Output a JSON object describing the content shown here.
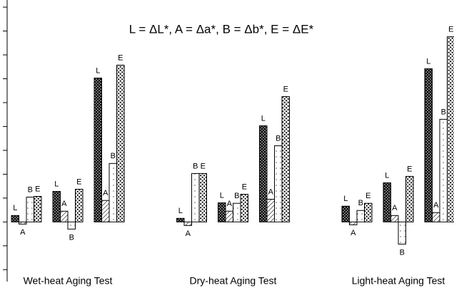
{
  "chart_data": {
    "type": "bar",
    "title": "L = ΔL*, A = Δa*, B = Δb*, E = ΔE*",
    "categories": [
      null,
      "Wet-heat Aging Test",
      null,
      null,
      "Dry-heat Aging Test",
      null,
      null,
      "Light-heat Aging Test",
      null
    ],
    "series": [
      {
        "name": "L",
        "color": "#000000",
        "values": [
          0.27,
          1.28,
          6.03,
          0.15,
          0.8,
          4.03,
          0.66,
          1.64,
          6.42
        ]
      },
      {
        "name": "A",
        "color": "#000000",
        "values": [
          -0.09,
          0.45,
          0.9,
          -0.15,
          0.45,
          0.95,
          -0.12,
          0.27,
          0.39
        ]
      },
      {
        "name": "B",
        "color": "#000000",
        "values": [
          1.04,
          -0.3,
          2.45,
          2.03,
          0.78,
          3.19,
          0.48,
          -0.93,
          4.3
        ]
      },
      {
        "name": "E",
        "color": "#000000",
        "values": [
          1.07,
          1.37,
          6.57,
          2.03,
          1.16,
          5.25,
          0.78,
          1.91,
          7.76
        ]
      }
    ],
    "ylim": [
      -2.5,
      9.3
    ],
    "yticks": [
      -2,
      -1,
      0,
      1,
      2,
      3,
      4,
      5,
      6,
      7,
      8,
      9
    ]
  }
}
